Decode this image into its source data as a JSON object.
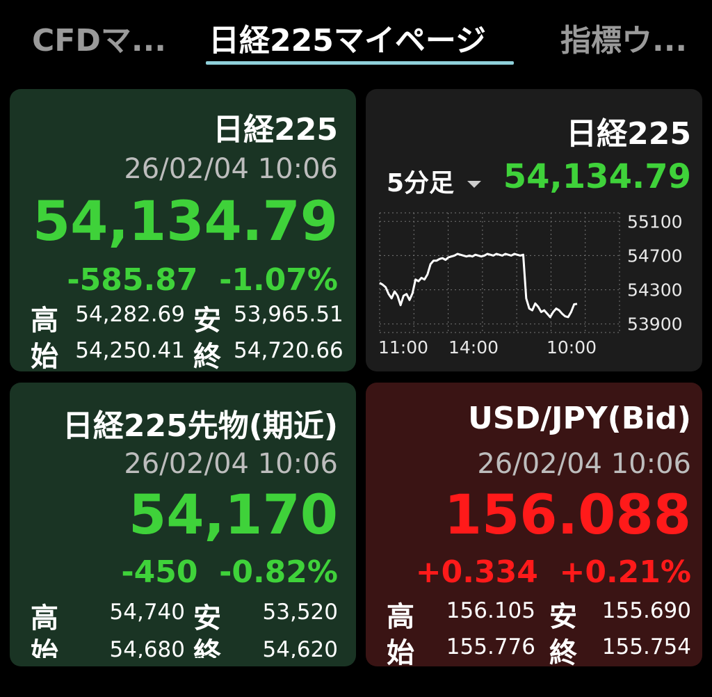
{
  "tabs": [
    {
      "label": "CFDマ..."
    },
    {
      "label": "日経225マイページ"
    },
    {
      "label": "指標ウ..."
    }
  ],
  "cards": {
    "nikkei": {
      "title": "日経225",
      "datetime": "26/02/04 10:06",
      "price": "54,134.79",
      "change": "-585.87",
      "change_pct": "-1.07%",
      "high_label": "高",
      "high": "54,282.69",
      "low_label": "安",
      "low": "53,965.51",
      "open_label": "始",
      "open": "54,250.41",
      "close_label": "終",
      "close": "54,720.66"
    },
    "chart": {
      "title": "日経225",
      "interval": "5分足",
      "price": "54,134.79"
    },
    "futures": {
      "title": "日経225先物(期近)",
      "datetime": "26/02/04 10:06",
      "price": "54,170",
      "change": "-450",
      "change_pct": "-0.82%",
      "high_label": "高",
      "high": "54,740",
      "low_label": "安",
      "low": "53,520",
      "open_label": "始",
      "open": "54,680",
      "close_label": "終",
      "close": "54,620"
    },
    "usdjpy": {
      "title": "USD/JPY(Bid)",
      "datetime": "26/02/04 10:06",
      "price": "156.088",
      "change": "+0.334",
      "change_pct": "+0.21%",
      "high_label": "高",
      "high": "156.105",
      "low_label": "安",
      "low": "155.690",
      "open_label": "始",
      "open": "155.776",
      "close_label": "終",
      "close": "155.754"
    }
  },
  "colors": {
    "up": "#ff1a1a",
    "down": "#3fd23a",
    "accent": "#8fd0da"
  },
  "chart_data": {
    "type": "line",
    "x_ticks": [
      "11:00",
      "14:00",
      "10:00"
    ],
    "y_ticks": [
      55100,
      54700,
      54300,
      53900
    ],
    "ylim": [
      53800,
      55200
    ],
    "grid": true,
    "values": [
      54380,
      54360,
      54330,
      54250,
      54200,
      54280,
      54230,
      54120,
      54230,
      54250,
      54180,
      54260,
      54420,
      54400,
      54440,
      54420,
      54480,
      54600,
      54640,
      54640,
      54660,
      54670,
      54650,
      54680,
      54690,
      54700,
      54720,
      54710,
      54700,
      54690,
      54700,
      54690,
      54710,
      54700,
      54690,
      54700,
      54720,
      54710,
      54700,
      54720,
      54710,
      54700,
      54720,
      54710,
      54700,
      54720,
      54710,
      54700,
      54710,
      54200,
      54080,
      54060,
      54140,
      54100,
      54040,
      54060,
      54020,
      53980,
      54040,
      54080,
      54060,
      54020,
      53990,
      53980,
      54040,
      54130,
      54135
    ]
  }
}
